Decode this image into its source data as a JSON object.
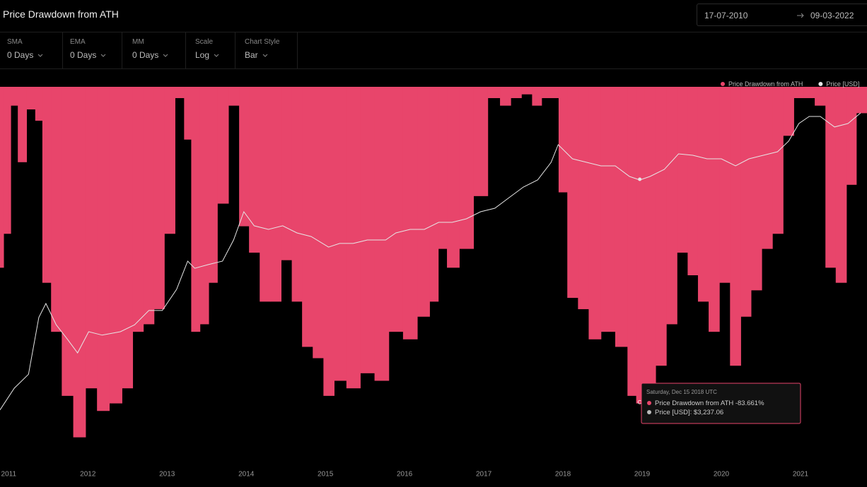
{
  "header": {
    "title": "Price Drawdown from ATH",
    "date_from": "17-07-2010",
    "date_to": "09-03-2022"
  },
  "controls": [
    {
      "label": "SMA",
      "value": "0 Days"
    },
    {
      "label": "EMA",
      "value": "0 Days"
    },
    {
      "label": "MM",
      "value": "0 Days"
    },
    {
      "label": "Scale",
      "value": "Log"
    },
    {
      "label": "Chart Style",
      "value": "Bar"
    }
  ],
  "chart_data": {
    "type": "bar",
    "legend": "top-right",
    "xlim": [
      2010.89,
      2021.84
    ],
    "xticks": [
      2011,
      2012,
      2013,
      2014,
      2015,
      2016,
      2017,
      2018,
      2019,
      2020,
      2021
    ],
    "ylim": [
      -100,
      0
    ],
    "y2lim": [
      0.01,
      200000
    ],
    "y2log": true,
    "series": [
      {
        "name": "Price Drawdown from ATH",
        "color": "#e8456b",
        "x": [
          2010.89,
          2010.98,
          2011.07,
          2011.16,
          2011.29,
          2011.38,
          2011.47,
          2011.6,
          2011.74,
          2011.89,
          2012.05,
          2012.18,
          2012.36,
          2012.5,
          2012.63,
          2012.77,
          2012.9,
          2013.03,
          2013.17,
          2013.26,
          2013.35,
          2013.48,
          2013.57,
          2013.7,
          2013.85,
          2013.97,
          2014.1,
          2014.24,
          2014.37,
          2014.51,
          2014.64,
          2014.77,
          2014.91,
          2015.04,
          2015.18,
          2015.35,
          2015.53,
          2015.71,
          2015.89,
          2016.07,
          2016.25,
          2016.38,
          2016.47,
          2016.6,
          2016.78,
          2016.96,
          2017.14,
          2017.27,
          2017.41,
          2017.54,
          2017.68,
          2017.78,
          2017.9,
          2017.99,
          2018.12,
          2018.26,
          2018.39,
          2018.57,
          2018.75,
          2018.88,
          2018.97,
          2019.1,
          2019.24,
          2019.37,
          2019.51,
          2019.64,
          2019.77,
          2019.91,
          2020.04,
          2020.18,
          2020.31,
          2020.44,
          2020.58,
          2020.71,
          2020.85,
          2020.98,
          2021.11,
          2021.25,
          2021.38,
          2021.51,
          2021.65,
          2021.76
        ],
        "values": [
          -48,
          -39,
          -5,
          -20,
          -6,
          -9,
          -52,
          -65,
          -82,
          -93,
          -80,
          -86,
          -84,
          -80,
          -65,
          -63,
          -59,
          -39,
          -3,
          -14,
          -65,
          -63,
          -52,
          -31,
          -5,
          -37,
          -44,
          -57,
          -57,
          -46,
          -57,
          -69,
          -72,
          -82,
          -78,
          -80,
          -76,
          -78,
          -65,
          -67,
          -61,
          -57,
          -43,
          -48,
          -43,
          -29,
          -3,
          -5,
          -3,
          -2,
          -5,
          -3,
          -3,
          -28,
          -56,
          -59,
          -67,
          -65,
          -69,
          -82,
          -84,
          -82,
          -74,
          -63,
          -44,
          -50,
          -57,
          -65,
          -52,
          -74,
          -61,
          -54,
          -43,
          -39,
          -13,
          -3,
          -3,
          -5,
          -48,
          -52,
          -26,
          -7
        ]
      },
      {
        "name": "Price [USD]",
        "color": "#e6e6e6",
        "type": "line",
        "axis": "y2",
        "x": [
          2010.89,
          2011.07,
          2011.25,
          2011.38,
          2011.47,
          2011.6,
          2011.74,
          2011.87,
          2012.01,
          2012.18,
          2012.41,
          2012.59,
          2012.77,
          2012.94,
          2013.12,
          2013.26,
          2013.35,
          2013.52,
          2013.7,
          2013.84,
          2013.97,
          2014.1,
          2014.28,
          2014.46,
          2014.64,
          2014.82,
          2015.04,
          2015.18,
          2015.35,
          2015.53,
          2015.76,
          2015.89,
          2016.07,
          2016.25,
          2016.43,
          2016.6,
          2016.78,
          2016.96,
          2017.14,
          2017.32,
          2017.5,
          2017.68,
          2017.85,
          2017.94,
          2018.12,
          2018.3,
          2018.48,
          2018.66,
          2018.84,
          2018.97,
          2019.1,
          2019.28,
          2019.46,
          2019.64,
          2019.82,
          2020.0,
          2020.18,
          2020.35,
          2020.53,
          2020.71,
          2020.85,
          2020.98,
          2021.11,
          2021.25,
          2021.43,
          2021.6,
          2021.76
        ],
        "values": [
          0.11,
          0.29,
          0.54,
          6.8,
          12.7,
          4.9,
          2.6,
          1.4,
          3.6,
          3.1,
          3.6,
          4.9,
          9.3,
          9.3,
          23.8,
          84,
          61,
          72,
          84,
          216,
          760,
          406,
          346,
          406,
          296,
          252,
          157,
          185,
          185,
          216,
          216,
          296,
          346,
          346,
          474,
          474,
          555,
          760,
          889,
          1426,
          2291,
          3133,
          6887,
          15136,
          8054,
          6887,
          5888,
          5888,
          3673,
          3133,
          3673,
          5023,
          10050,
          9441,
          8054,
          8054,
          5888,
          8054,
          9441,
          11040,
          17700,
          38900,
          53300,
          53300,
          33300,
          38900,
          62400
        ]
      }
    ],
    "tooltip": {
      "title": "Saturday, Dec 15 2018 UTC",
      "values": [
        -83.661,
        3237.06
      ],
      "value_labels": [
        "-83.661%",
        "$3,237.06"
      ]
    }
  }
}
